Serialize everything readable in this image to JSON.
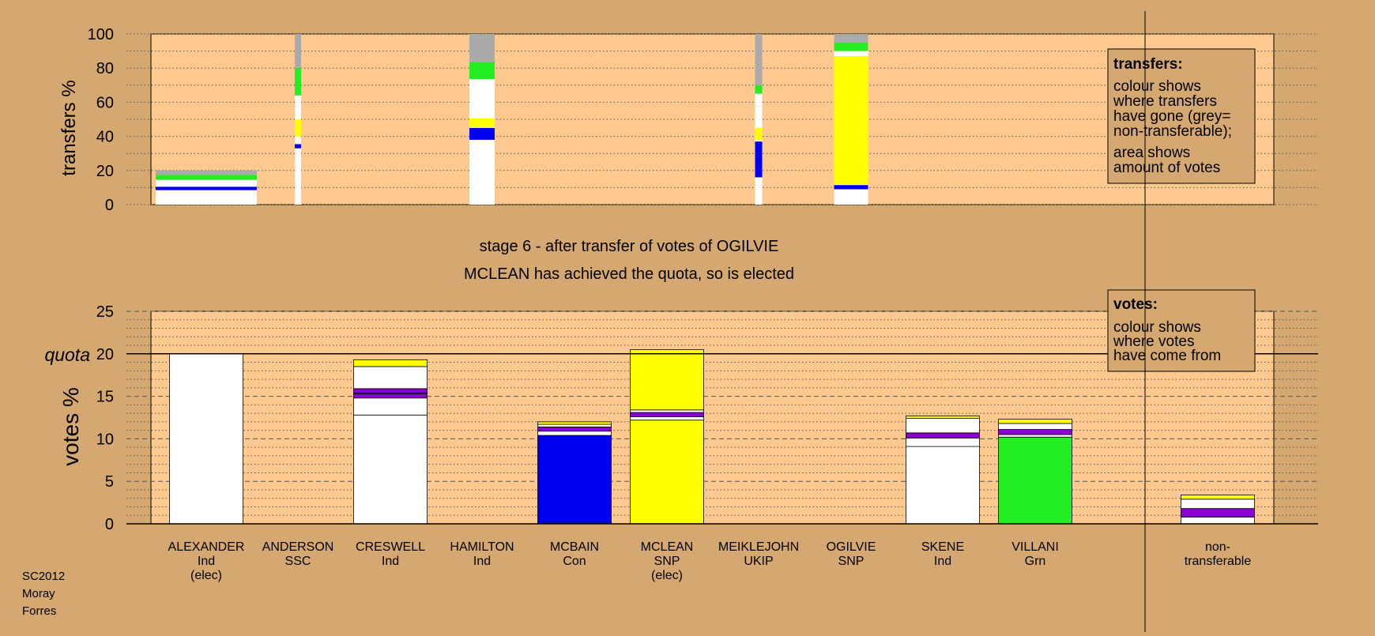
{
  "colors": {
    "background": "#d4a870",
    "panel": "#fdc98f",
    "white": "#ffffff",
    "blue": "#0000f0",
    "yellow": "#ffff00",
    "purple": "#8a00d4",
    "green": "#22ee22",
    "grey": "#aaaaaa"
  },
  "top_panel": {
    "ylabel": "transfers %",
    "yticks": [
      "0",
      "20",
      "40",
      "60",
      "80",
      "100"
    ],
    "legend_title": "transfers:",
    "legend_lines_1": [
      "colour shows",
      "where transfers",
      "have gone (grey=",
      "non-transferable);"
    ],
    "legend_lines_2": [
      "area shows",
      "amount of votes"
    ]
  },
  "headline": {
    "line1": "stage 6 - after transfer of votes of OGILVIE",
    "line2": "MCLEAN has achieved the quota, so is elected"
  },
  "bottom_panel": {
    "ylabel": "votes %",
    "yticks": [
      "0",
      "5",
      "10",
      "15",
      "20",
      "25"
    ],
    "quota_label": "quota",
    "legend_title": "votes:",
    "legend_lines": [
      "colour shows",
      "where votes",
      "have come from"
    ]
  },
  "candidates": [
    {
      "name": "ALEXANDER",
      "party": "Ind",
      "status": "(elec)"
    },
    {
      "name": "ANDERSON",
      "party": "SSC",
      "status": ""
    },
    {
      "name": "CRESWELL",
      "party": "Ind",
      "status": ""
    },
    {
      "name": "HAMILTON",
      "party": "Ind",
      "status": ""
    },
    {
      "name": "MCBAIN",
      "party": "Con",
      "status": ""
    },
    {
      "name": "MCLEAN",
      "party": "SNP",
      "status": "(elec)"
    },
    {
      "name": "MEIKLEJOHN",
      "party": "UKIP",
      "status": ""
    },
    {
      "name": "OGILVIE",
      "party": "SNP",
      "status": ""
    },
    {
      "name": "SKENE",
      "party": "Ind",
      "status": ""
    },
    {
      "name": "VILLANI",
      "party": "Grn",
      "status": ""
    }
  ],
  "nontransferable": {
    "line1": "non-",
    "line2": "transferable"
  },
  "footer": [
    "SC2012",
    "Moray",
    "Forres"
  ],
  "chart_data": [
    {
      "type": "bar",
      "title": "",
      "ylabel": "transfers %",
      "ylim": [
        0,
        100
      ],
      "grid": true,
      "stacked": true,
      "note": "bar width shows amount of votes transferred",
      "bars": [
        {
          "candidate": "ALEXANDER",
          "segments": [
            {
              "color": "white",
              "value": 8.5
            },
            {
              "color": "blue",
              "value": 2
            },
            {
              "color": "white",
              "value": 4
            },
            {
              "color": "green",
              "value": 3
            },
            {
              "color": "grey",
              "value": 2.5
            }
          ]
        },
        {
          "candidate": "ANDERSON",
          "segments": [
            {
              "color": "white",
              "value": 33
            },
            {
              "color": "blue",
              "value": 2.5
            },
            {
              "color": "white",
              "value": 4.5
            },
            {
              "color": "yellow",
              "value": 10
            },
            {
              "color": "white",
              "value": 14
            },
            {
              "color": "green",
              "value": 16
            },
            {
              "color": "grey",
              "value": 20
            }
          ]
        },
        {
          "candidate": "HAMILTON",
          "segments": [
            {
              "color": "white",
              "value": 38
            },
            {
              "color": "blue",
              "value": 7
            },
            {
              "color": "white",
              "value": 0.5
            },
            {
              "color": "yellow",
              "value": 5
            },
            {
              "color": "white",
              "value": 23
            },
            {
              "color": "green",
              "value": 10
            },
            {
              "color": "grey",
              "value": 16.5
            }
          ]
        },
        {
          "candidate": "MEIKLEJOHN",
          "segments": [
            {
              "color": "white",
              "value": 16
            },
            {
              "color": "blue",
              "value": 21
            },
            {
              "color": "white",
              "value": 1
            },
            {
              "color": "yellow",
              "value": 7
            },
            {
              "color": "white",
              "value": 20
            },
            {
              "color": "green",
              "value": 5
            },
            {
              "color": "grey",
              "value": 30
            }
          ]
        },
        {
          "candidate": "OGILVIE",
          "segments": [
            {
              "color": "white",
              "value": 9
            },
            {
              "color": "blue",
              "value": 2.5
            },
            {
              "color": "white",
              "value": 0.5
            },
            {
              "color": "yellow",
              "value": 75
            },
            {
              "color": "white",
              "value": 3
            },
            {
              "color": "green",
              "value": 5
            },
            {
              "color": "grey",
              "value": 5
            }
          ]
        }
      ]
    },
    {
      "type": "bar",
      "title": "",
      "ylabel": "votes %",
      "ylim": [
        0,
        25
      ],
      "quota": 20,
      "grid": true,
      "stacked": true,
      "bars": [
        {
          "candidate": "ALEXANDER",
          "segments": [
            {
              "color": "white",
              "value": 20
            }
          ]
        },
        {
          "candidate": "CRESWELL",
          "segments": [
            {
              "color": "white",
              "value": 12.8
            },
            {
              "color": "white",
              "value": 2
            },
            {
              "color": "purple",
              "value": 0.5
            },
            {
              "color": "blue",
              "value": 0.1
            },
            {
              "color": "purple",
              "value": 0.5
            },
            {
              "color": "white",
              "value": 2.6
            },
            {
              "color": "yellow",
              "value": 0.8
            }
          ]
        },
        {
          "candidate": "MCBAIN",
          "segments": [
            {
              "color": "blue",
              "value": 10.4
            },
            {
              "color": "white",
              "value": 0.5
            },
            {
              "color": "purple",
              "value": 0.5
            },
            {
              "color": "white",
              "value": 0.3
            },
            {
              "color": "yellow",
              "value": 0.3
            }
          ]
        },
        {
          "candidate": "MCLEAN",
          "segments": [
            {
              "color": "yellow",
              "value": 12.2
            },
            {
              "color": "white",
              "value": 0.4
            },
            {
              "color": "purple",
              "value": 0.5
            },
            {
              "color": "white",
              "value": 0.3
            },
            {
              "color": "yellow",
              "value": 7.1
            }
          ]
        },
        {
          "candidate": "SKENE",
          "segments": [
            {
              "color": "white",
              "value": 9.1
            },
            {
              "color": "white",
              "value": 1
            },
            {
              "color": "purple",
              "value": 0.6
            },
            {
              "color": "white",
              "value": 1.7
            },
            {
              "color": "yellow",
              "value": 0.3
            }
          ]
        },
        {
          "candidate": "VILLANI",
          "segments": [
            {
              "color": "green",
              "value": 10.2
            },
            {
              "color": "white",
              "value": 0.3
            },
            {
              "color": "purple",
              "value": 0.6
            },
            {
              "color": "white",
              "value": 0.7
            },
            {
              "color": "yellow",
              "value": 0.5
            }
          ]
        },
        {
          "candidate": "non-transferable",
          "segments": [
            {
              "color": "white",
              "value": 0.8
            },
            {
              "color": "purple",
              "value": 1
            },
            {
              "color": "white",
              "value": 1.1
            },
            {
              "color": "yellow",
              "value": 0.5
            }
          ]
        }
      ]
    }
  ]
}
